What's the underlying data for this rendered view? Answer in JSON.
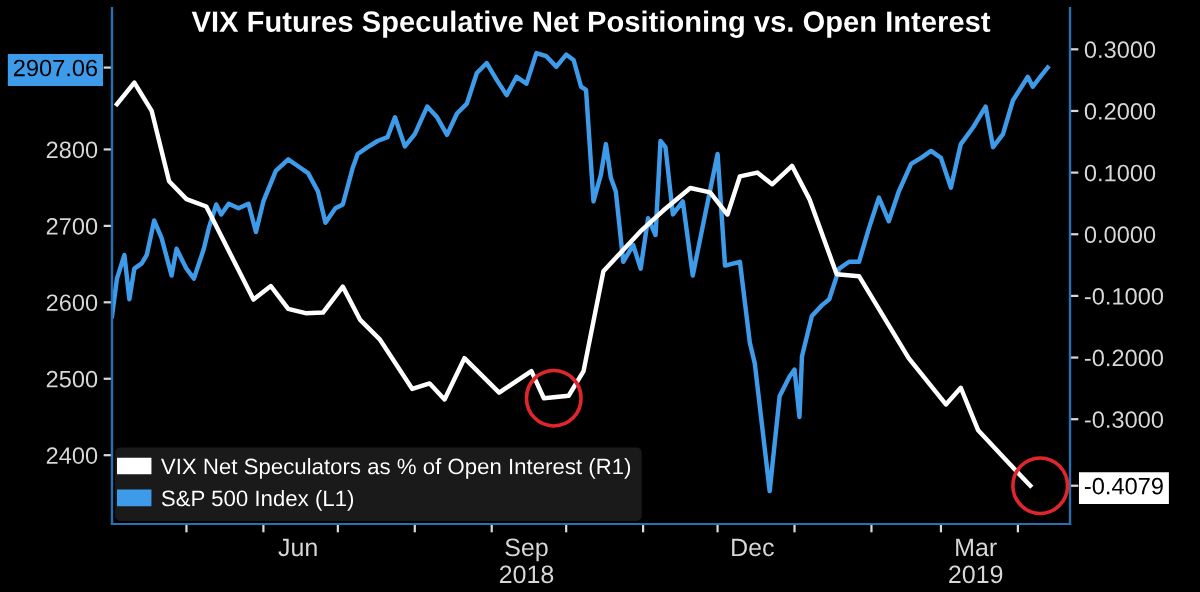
{
  "chart_data": {
    "type": "line",
    "title": "VIX Futures Speculative Net Positioning vs. Open Interest",
    "xlim": [
      "2018-04-01",
      "2019-04-22"
    ],
    "xticks": [
      {
        "value": "2018-05-01",
        "label": null
      },
      {
        "value": "2018-06-01",
        "label": null
      },
      {
        "value": "2018-06-15",
        "label": "Jun"
      },
      {
        "value": "2018-07-01",
        "label": null
      },
      {
        "value": "2018-08-01",
        "label": null
      },
      {
        "value": "2018-09-01",
        "label": null
      },
      {
        "value": "2018-09-15",
        "label": "Sep\n2018"
      },
      {
        "value": "2018-10-01",
        "label": null
      },
      {
        "value": "2018-11-01",
        "label": null
      },
      {
        "value": "2018-12-01",
        "label": null
      },
      {
        "value": "2018-12-15",
        "label": "Dec"
      },
      {
        "value": "2019-01-01",
        "label": null
      },
      {
        "value": "2019-02-01",
        "label": null
      },
      {
        "value": "2019-03-01",
        "label": null
      },
      {
        "value": "2019-03-15",
        "label": "Mar\n2019"
      },
      {
        "value": "2019-04-01",
        "label": null
      }
    ],
    "ylim": [
      2310,
      2985
    ],
    "yticks": [
      2400,
      2500,
      2600,
      2700,
      2800,
      {
        "value": 2907.06,
        "label": "2907.06"
      }
    ],
    "y2lim": [
      -0.47,
      0.367
    ],
    "y2ticks": [
      {
        "value": 0.3,
        "label": "0.3000"
      },
      {
        "value": 0.2,
        "label": "0.2000"
      },
      {
        "value": 0.1,
        "label": "0.1000"
      },
      {
        "value": 0.0,
        "label": "0.0000"
      },
      {
        "value": -0.1,
        "label": "-0.1000"
      },
      {
        "value": -0.2,
        "label": "-0.2000"
      },
      {
        "value": -0.3,
        "label": "-0.3000"
      },
      {
        "value": -0.4079,
        "label": "-0.4079"
      }
    ],
    "grid": false,
    "legend": "bottom left",
    "marker": "none",
    "line_style": "solid",
    "series": [
      {
        "name": "VIX Net Speculators as % of Open Interest (R1)",
        "color": "#ffffff",
        "axis": "y2",
        "x": [
          "2018-04-03",
          "2018-04-10",
          "2018-04-17",
          "2018-04-24",
          "2018-05-01",
          "2018-05-09",
          "2018-05-28",
          "2018-06-04",
          "2018-06-11",
          "2018-06-18",
          "2018-06-25",
          "2018-07-03",
          "2018-07-10",
          "2018-07-18",
          "2018-07-31",
          "2018-08-07",
          "2018-08-13",
          "2018-08-21",
          "2018-09-04",
          "2018-09-17",
          "2018-09-22",
          "2018-10-02",
          "2018-10-08",
          "2018-10-16",
          "2018-10-31",
          "2018-11-09",
          "2018-11-20",
          "2018-11-28",
          "2018-12-05",
          "2018-12-10",
          "2018-12-17",
          "2018-12-23",
          "2018-12-31",
          "2019-01-07",
          "2019-01-18",
          "2019-01-27",
          "2019-02-16",
          "2019-03-03",
          "2019-03-09",
          "2019-03-16",
          "2019-03-29",
          "2019-04-06"
        ],
        "values": [
          0.211,
          0.246,
          0.2,
          0.086,
          0.057,
          0.045,
          -0.106,
          -0.084,
          -0.121,
          -0.128,
          -0.127,
          -0.085,
          -0.139,
          -0.171,
          -0.251,
          -0.242,
          -0.268,
          -0.201,
          -0.257,
          -0.222,
          -0.266,
          -0.262,
          -0.222,
          -0.06,
          0.005,
          0.038,
          0.075,
          0.068,
          0.032,
          0.094,
          0.1,
          0.081,
          0.111,
          0.057,
          -0.065,
          -0.068,
          -0.201,
          -0.276,
          -0.249,
          -0.318,
          -0.374,
          -0.4079
        ]
      },
      {
        "name": "S&P 500 Index (L1)",
        "color": "#3d9be9",
        "axis": "y",
        "x": [
          "2018-04-01",
          "2018-04-03",
          "2018-04-06",
          "2018-04-08",
          "2018-04-10",
          "2018-04-13",
          "2018-04-15",
          "2018-04-18",
          "2018-04-21",
          "2018-04-25",
          "2018-04-27",
          "2018-05-01",
          "2018-05-04",
          "2018-05-08",
          "2018-05-10",
          "2018-05-13",
          "2018-05-15",
          "2018-05-18",
          "2018-05-22",
          "2018-05-26",
          "2018-05-29",
          "2018-06-01",
          "2018-06-06",
          "2018-06-11",
          "2018-06-15",
          "2018-06-19",
          "2018-06-23",
          "2018-06-26",
          "2018-06-30",
          "2018-07-03",
          "2018-07-07",
          "2018-07-09",
          "2018-07-13",
          "2018-07-17",
          "2018-07-21",
          "2018-07-24",
          "2018-07-28",
          "2018-08-01",
          "2018-08-06",
          "2018-08-10",
          "2018-08-14",
          "2018-08-18",
          "2018-08-22",
          "2018-08-26",
          "2018-08-30",
          "2018-09-03",
          "2018-09-07",
          "2018-09-11",
          "2018-09-15",
          "2018-09-19",
          "2018-09-23",
          "2018-09-27",
          "2018-10-01",
          "2018-10-04",
          "2018-10-07",
          "2018-10-09",
          "2018-10-12",
          "2018-10-15",
          "2018-10-17",
          "2018-10-19",
          "2018-10-21",
          "2018-10-24",
          "2018-10-28",
          "2018-10-31",
          "2018-11-03",
          "2018-11-06",
          "2018-11-08",
          "2018-11-10",
          "2018-11-13",
          "2018-11-17",
          "2018-11-21",
          "2018-11-26",
          "2018-12-01",
          "2018-12-04",
          "2018-12-10",
          "2018-12-14",
          "2018-12-16",
          "2018-12-22",
          "2018-12-26",
          "2018-12-30",
          "2019-01-01",
          "2019-01-03",
          "2019-01-04",
          "2019-01-08",
          "2019-01-12",
          "2019-01-15",
          "2019-01-19",
          "2019-01-23",
          "2019-01-27",
          "2019-01-31",
          "2019-02-04",
          "2019-02-08",
          "2019-02-12",
          "2019-02-17",
          "2019-02-21",
          "2019-02-25",
          "2019-03-01",
          "2019-03-05",
          "2019-03-09",
          "2019-03-14",
          "2019-03-19",
          "2019-03-22",
          "2019-03-26",
          "2019-03-30",
          "2019-04-05",
          "2019-04-07",
          "2019-04-10",
          "2019-04-13"
        ],
        "values": [
          2582,
          2631,
          2662,
          2604,
          2644,
          2651,
          2662,
          2707,
          2684,
          2635,
          2670,
          2644,
          2631,
          2670,
          2697,
          2728,
          2715,
          2729,
          2723,
          2729,
          2692,
          2732,
          2772,
          2787,
          2778,
          2769,
          2745,
          2704,
          2723,
          2728,
          2776,
          2794,
          2803,
          2811,
          2816,
          2842,
          2804,
          2820,
          2856,
          2842,
          2819,
          2847,
          2860,
          2900,
          2913,
          2891,
          2871,
          2895,
          2886,
          2926,
          2922,
          2908,
          2924,
          2917,
          2882,
          2878,
          2732,
          2767,
          2807,
          2763,
          2745,
          2653,
          2675,
          2644,
          2710,
          2688,
          2811,
          2803,
          2715,
          2732,
          2635,
          2715,
          2794,
          2648,
          2653,
          2547,
          2520,
          2353,
          2477,
          2503,
          2512,
          2450,
          2529,
          2582,
          2596,
          2604,
          2644,
          2653,
          2653,
          2697,
          2737,
          2706,
          2745,
          2781,
          2789,
          2798,
          2789,
          2750,
          2807,
          2829,
          2856,
          2803,
          2820,
          2864,
          2895,
          2882,
          2895,
          2907.06
        ]
      }
    ]
  }
}
